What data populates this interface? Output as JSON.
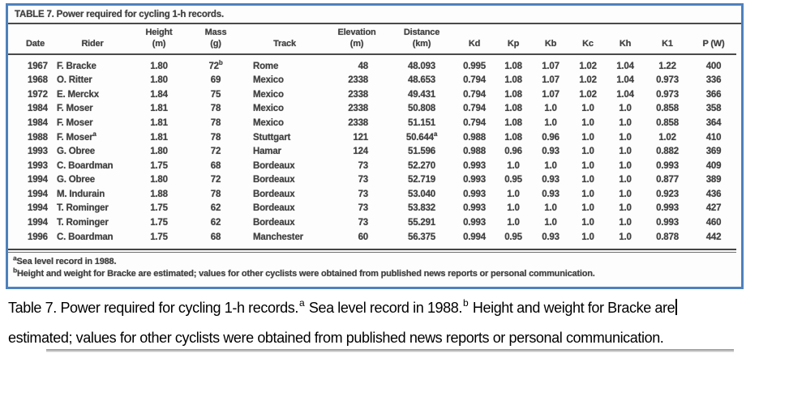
{
  "accent_color": "#4f81bd",
  "scan": {
    "title": "TABLE 7. Power required for cycling 1-h records.",
    "columns": [
      {
        "top": "",
        "bottom": "Date"
      },
      {
        "top": "",
        "bottom": "Rider"
      },
      {
        "top": "Height",
        "bottom": "(m)"
      },
      {
        "top": "Mass",
        "bottom": "(g)"
      },
      {
        "top": "",
        "bottom": "Track"
      },
      {
        "top": "Elevation",
        "bottom": "(m)"
      },
      {
        "top": "Distance",
        "bottom": "(km)"
      },
      {
        "top": "",
        "bottom": "Kd"
      },
      {
        "top": "",
        "bottom": "Kp"
      },
      {
        "top": "",
        "bottom": "Kb"
      },
      {
        "top": "",
        "bottom": "Kc"
      },
      {
        "top": "",
        "bottom": "Kh"
      },
      {
        "top": "",
        "bottom": "K1"
      },
      {
        "top": "",
        "bottom": "P (W)"
      }
    ],
    "rows": [
      [
        "1967",
        "F. Bracke",
        "1.80",
        "72^b",
        "Rome",
        "48",
        "48.093",
        "0.995",
        "1.08",
        "1.07",
        "1.02",
        "1.04",
        "1.22",
        "400"
      ],
      [
        "1968",
        "O. Ritter",
        "1.80",
        "69",
        "Mexico",
        "2338",
        "48.653",
        "0.794",
        "1.08",
        "1.07",
        "1.02",
        "1.04",
        "0.973",
        "336"
      ],
      [
        "1972",
        "E. Merckx",
        "1.84",
        "75",
        "Mexico",
        "2338",
        "49.431",
        "0.794",
        "1.08",
        "1.07",
        "1.02",
        "1.04",
        "0.973",
        "366"
      ],
      [
        "1984",
        "F. Moser",
        "1.81",
        "78",
        "Mexico",
        "2338",
        "50.808",
        "0.794",
        "1.08",
        "1.0",
        "1.0",
        "1.0",
        "0.858",
        "358"
      ],
      [
        "1984",
        "F. Moser",
        "1.81",
        "78",
        "Mexico",
        "2338",
        "51.151",
        "0.794",
        "1.08",
        "1.0",
        "1.0",
        "1.0",
        "0.858",
        "364"
      ],
      [
        "1988",
        "F. Moser^a",
        "1.81",
        "78",
        "Stuttgart",
        "121",
        "50.644^a",
        "0.988",
        "1.08",
        "0.96",
        "1.0",
        "1.0",
        "1.02",
        "410"
      ],
      [
        "1993",
        "G. Obree",
        "1.80",
        "72",
        "Hamar",
        "124",
        "51.596",
        "0.988",
        "0.96",
        "0.93",
        "1.0",
        "1.0",
        "0.882",
        "369"
      ],
      [
        "1993",
        "C. Boardman",
        "1.75",
        "68",
        "Bordeaux",
        "73",
        "52.270",
        "0.993",
        "1.0",
        "1.0",
        "1.0",
        "1.0",
        "0.993",
        "409"
      ],
      [
        "1994",
        "G. Obree",
        "1.80",
        "72",
        "Bordeaux",
        "73",
        "52.719",
        "0.993",
        "0.95",
        "0.93",
        "1.0",
        "1.0",
        "0.877",
        "389"
      ],
      [
        "1994",
        "M. Indurain",
        "1.88",
        "78",
        "Bordeaux",
        "73",
        "53.040",
        "0.993",
        "1.0",
        "0.93",
        "1.0",
        "1.0",
        "0.923",
        "436"
      ],
      [
        "1994",
        "T. Rominger",
        "1.75",
        "62",
        "Bordeaux",
        "73",
        "53.832",
        "0.993",
        "1.0",
        "1.0",
        "1.0",
        "1.0",
        "0.993",
        "427"
      ],
      [
        "1994",
        "T. Rominger",
        "1.75",
        "62",
        "Bordeaux",
        "73",
        "55.291",
        "0.993",
        "1.0",
        "1.0",
        "1.0",
        "1.0",
        "0.993",
        "460"
      ],
      [
        "1996",
        "C. Boardman",
        "1.75",
        "68",
        "Manchester",
        "60",
        "56.375",
        "0.994",
        "0.95",
        "0.93",
        "1.0",
        "1.0",
        "0.878",
        "442"
      ]
    ],
    "footnotes": [
      {
        "marker": "a",
        "text": "Sea level record in 1988."
      },
      {
        "marker": "b",
        "text": "Height and weight for Bracke are estimated; values for other cyclists were obtained from published news reports or personal communication."
      }
    ]
  },
  "caption": {
    "line1_segments": [
      {
        "text": "Table 7. Power required for cycling 1-h records."
      },
      {
        "sup": "a"
      },
      {
        "text": " Sea level record in 1988."
      },
      {
        "sup": "b"
      },
      {
        "text": " Height and weight for Bracke are"
      }
    ],
    "line2": "estimated; values for other cyclists were obtained from published news reports or personal communication."
  }
}
